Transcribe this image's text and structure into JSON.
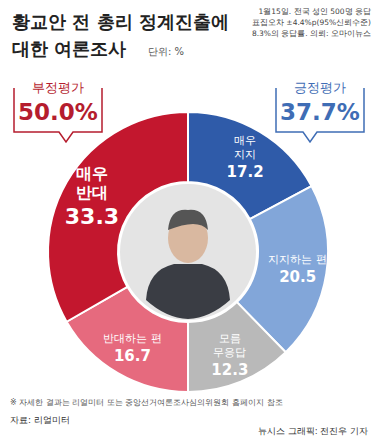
{
  "chart_data": {
    "type": "pie",
    "title": "황교안 전 총리 정계진출에\n대한 여론조사",
    "unit": "단위: %",
    "note": "1월15일. 전국 성인 500명 응답\n표집오차 ±4.4%p(95%신뢰수준)\n8.3%의 응답률. 의뢰: 오마이뉴스",
    "categories": [
      "매우\n지지",
      "지지하는 편",
      "모름\n무응답",
      "반대하는 편",
      "매우\n반대"
    ],
    "values": [
      17.2,
      20.5,
      12.3,
      16.7,
      33.3
    ],
    "colors": [
      "#2f5ba9",
      "#82a6d9",
      "#b9b9b9",
      "#e66a7e",
      "#c3172e"
    ],
    "data_labels": true,
    "groups": [
      {
        "name": "부정평가",
        "value": 50.0,
        "value_label": "50.0%",
        "color": "#b51d2e"
      },
      {
        "name": "긍정평가",
        "value": 37.7,
        "value_label": "37.7%",
        "color": "#3f6db5"
      }
    ],
    "footnote": "※ 자세한 결과는 리얼미터 또는 중앙선거여론조사심의위원회 홈페이지 참조",
    "source": "자료: 리얼미터",
    "credit": "뉴시스 그래픽: 전진우 기자"
  }
}
